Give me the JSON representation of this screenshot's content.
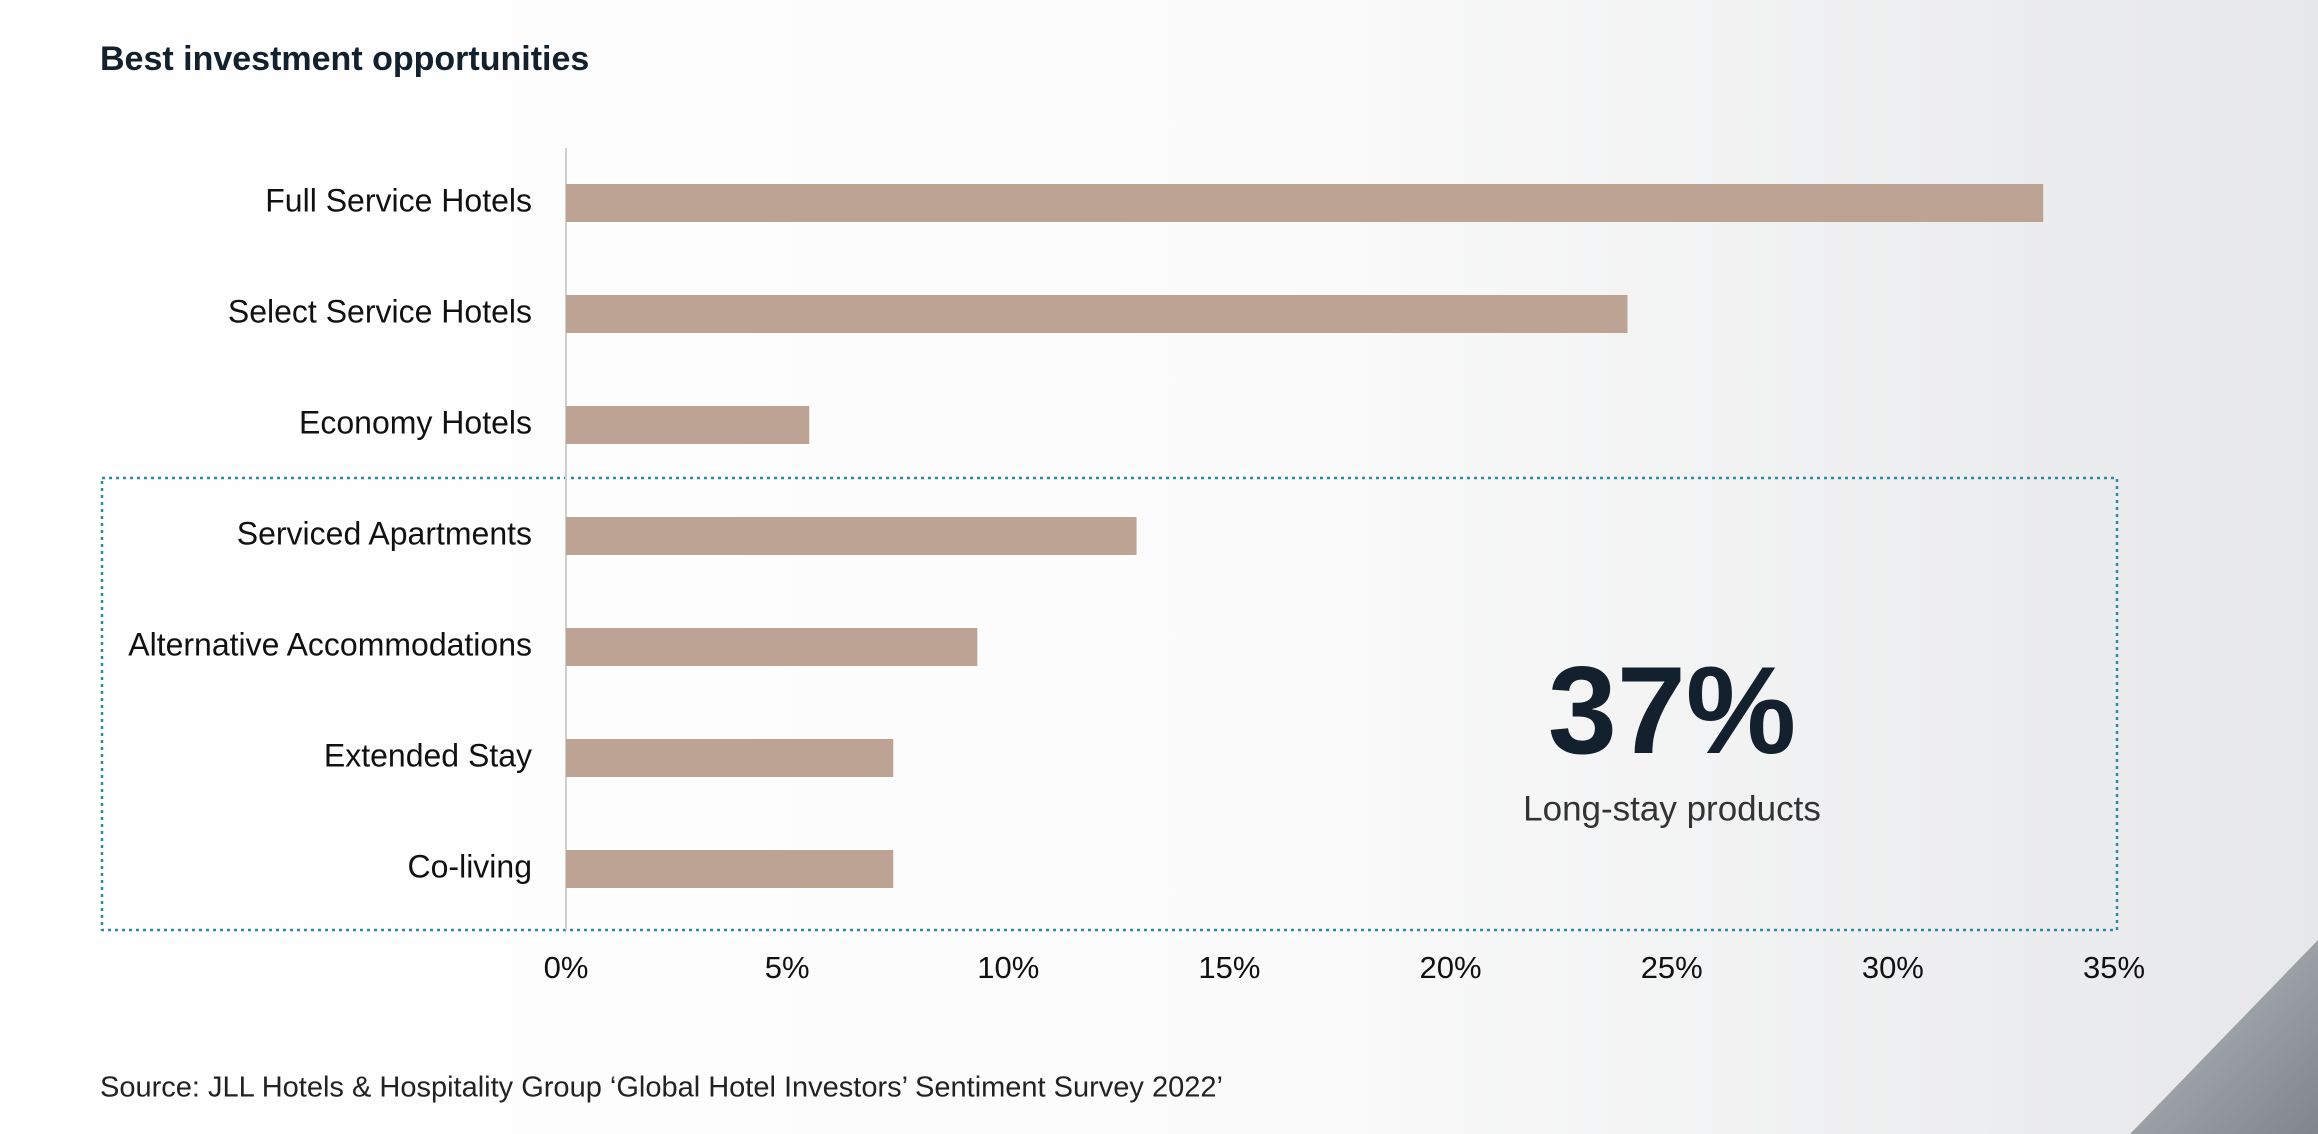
{
  "chart_data": {
    "type": "bar",
    "orientation": "horizontal",
    "title": "Best investment opportunities",
    "categories": [
      "Full Service Hotels",
      "Select Service Hotels",
      "Economy Hotels",
      "Serviced Apartments",
      "Alternative Accommodations",
      "Extended Stay",
      "Co-living"
    ],
    "values": [
      33.4,
      24.0,
      5.5,
      12.9,
      9.3,
      7.4,
      7.4
    ],
    "color": "#bca393",
    "xlim": [
      0,
      35
    ],
    "xticks": [
      {
        "value": 0,
        "label": "0%"
      },
      {
        "value": 5,
        "label": "5%"
      },
      {
        "value": 10,
        "label": "10%"
      },
      {
        "value": 15,
        "label": "15%"
      },
      {
        "value": 20,
        "label": "20%"
      },
      {
        "value": 25,
        "label": "25%"
      },
      {
        "value": 30,
        "label": "30%"
      },
      {
        "value": 35,
        "label": "35%"
      }
    ],
    "grid": false,
    "annotation": {
      "value": "37%",
      "text": "Long-stay products"
    },
    "source": "Source: JLL Hotels & Hospitality Group ‘Global Hotel Investors’ Sentiment Survey 2022’"
  }
}
